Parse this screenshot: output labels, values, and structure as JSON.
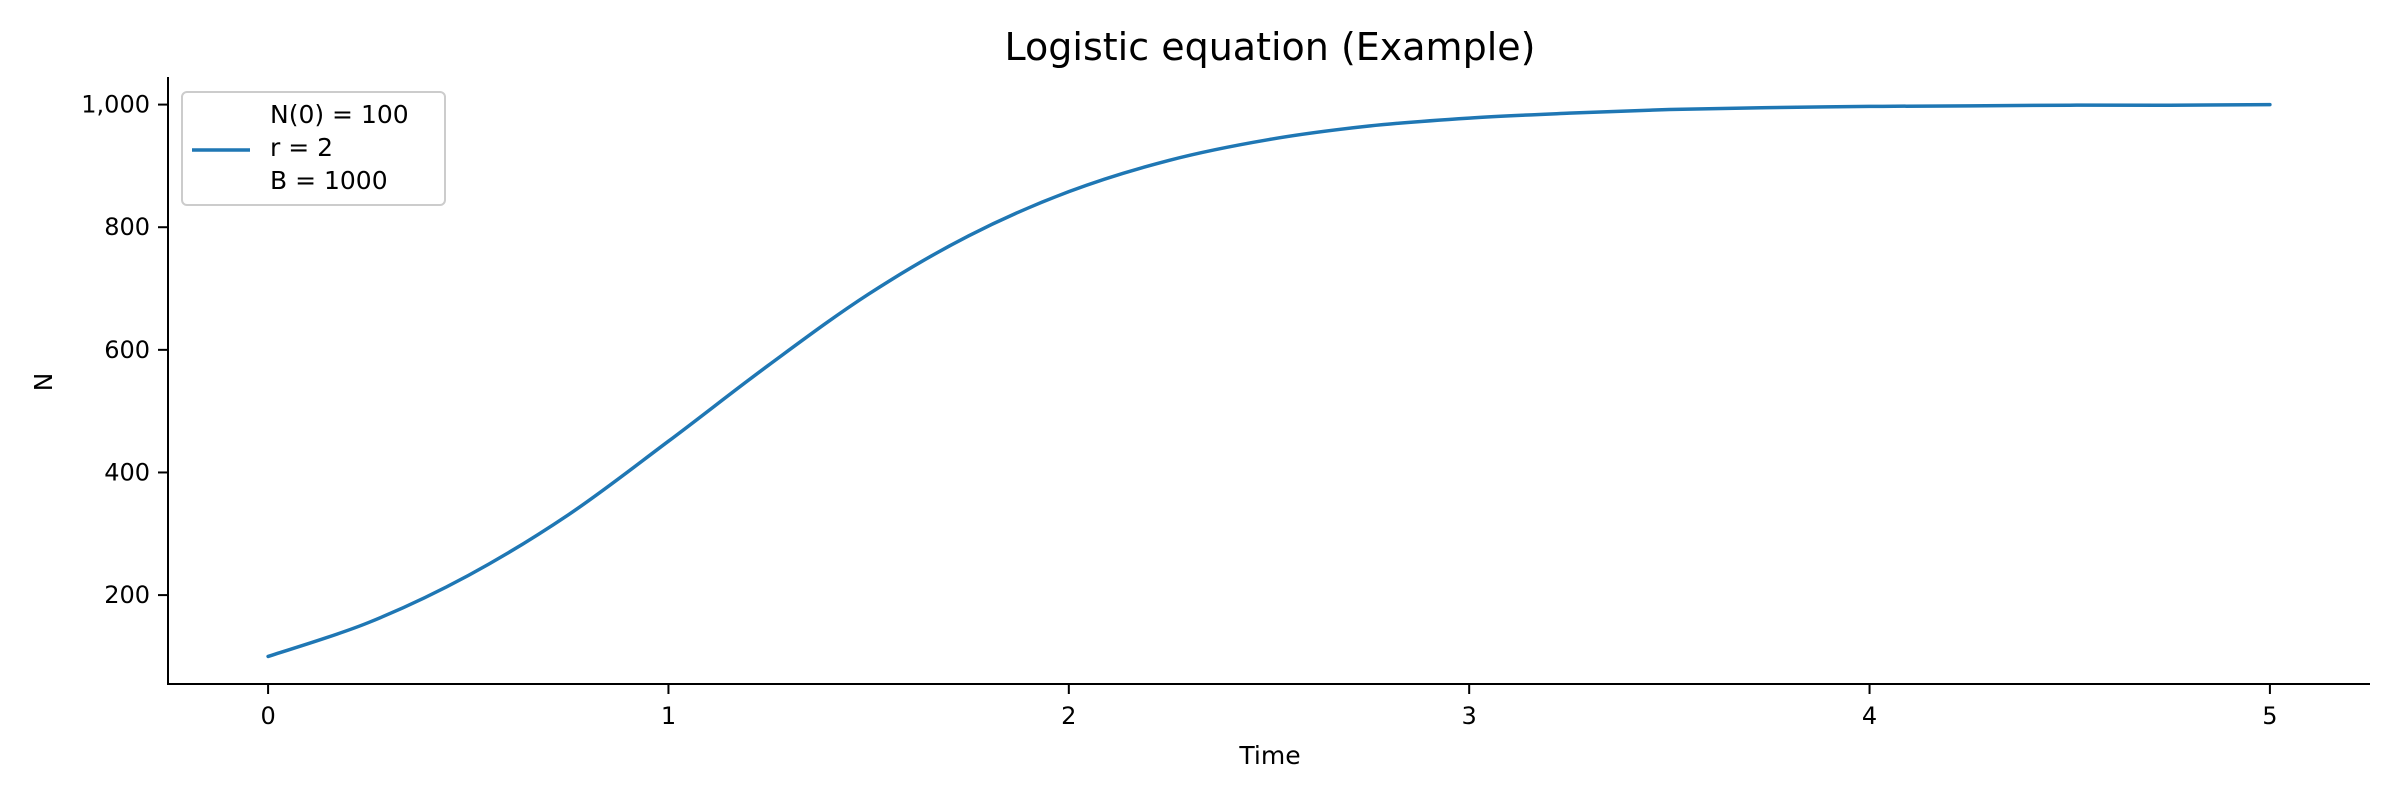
{
  "chart_data": {
    "type": "line",
    "title": "Logistic equation (Example)",
    "xlabel": "Time",
    "ylabel": "N",
    "xlim": [
      -0.25,
      5.25
    ],
    "ylim": [
      55,
      1045
    ],
    "x_ticks": [
      0,
      1,
      2,
      3,
      4,
      5
    ],
    "x_tick_labels": [
      "0",
      "1",
      "2",
      "3",
      "4",
      "5"
    ],
    "y_ticks": [
      200,
      400,
      600,
      800,
      1000
    ],
    "y_tick_labels": [
      "200",
      "400",
      "600",
      "800",
      "1,000"
    ],
    "grid": false,
    "legend_position": "top-left",
    "legend_lines": [
      "N(0) = 100",
      "r = 2",
      "B = 1000"
    ],
    "series": [
      {
        "color": "#1f77b4",
        "x": [
          0,
          0.25,
          0.5,
          0.75,
          1.0,
          1.25,
          1.5,
          1.75,
          2.0,
          2.25,
          2.5,
          2.75,
          3.0,
          3.25,
          3.5,
          3.75,
          4.0,
          4.25,
          4.5,
          4.75,
          5.0
        ],
        "y": [
          100,
          155,
          232,
          331,
          451,
          575,
          691,
          786,
          858,
          909,
          943,
          965,
          978,
          986,
          992,
          995,
          997,
          998,
          999,
          999,
          1000
        ]
      }
    ]
  }
}
